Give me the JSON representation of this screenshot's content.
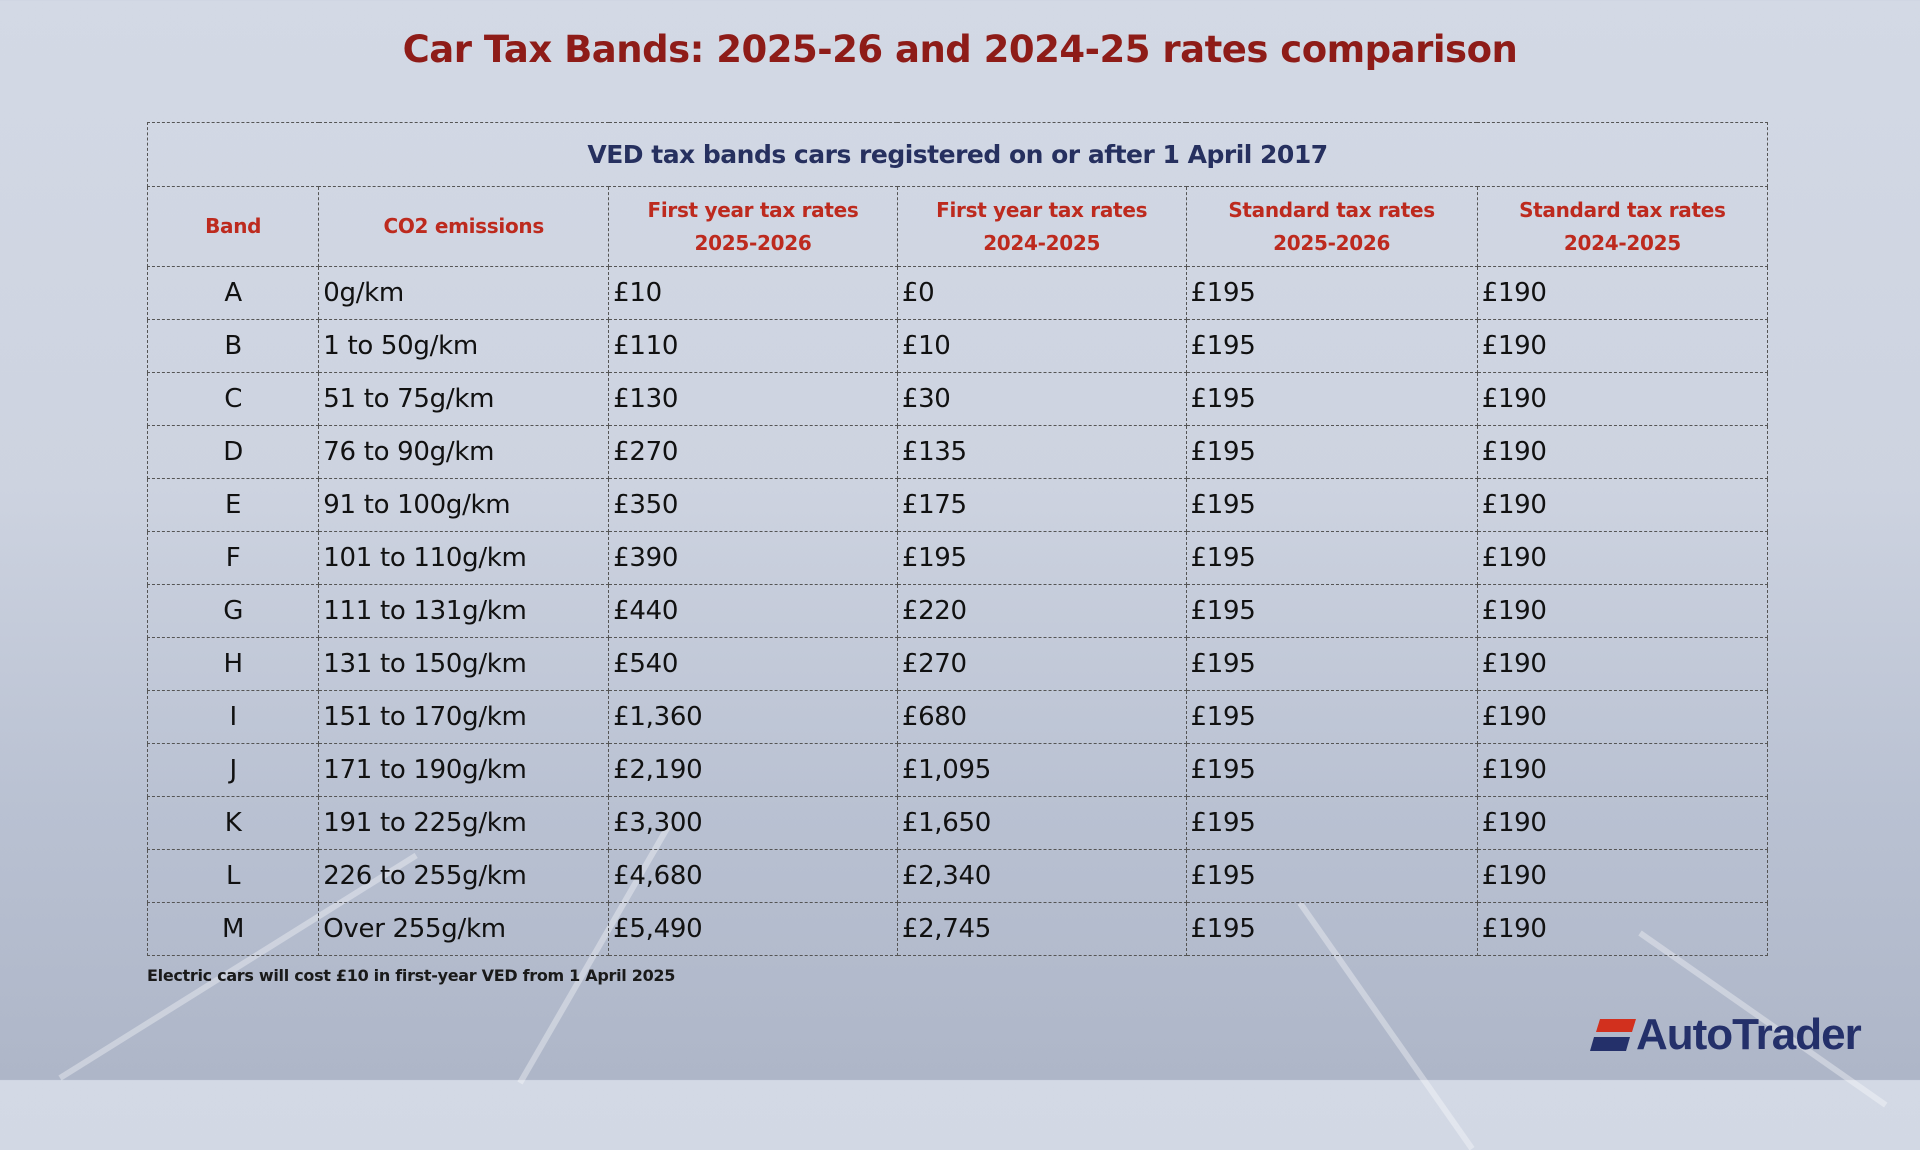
{
  "title": "Car Tax Bands: 2025-26  and 2024-25 rates comparison",
  "table": {
    "caption": "VED tax bands cars registered on or after 1 April 2017",
    "headers": [
      {
        "line1": "Band",
        "line2": ""
      },
      {
        "line1": "CO2 emissions",
        "line2": ""
      },
      {
        "line1": "First year tax rates",
        "line2": "2025-2026"
      },
      {
        "line1": "First year tax rates",
        "line2": "2024-2025"
      },
      {
        "line1": "Standard tax rates",
        "line2": "2025-2026"
      },
      {
        "line1": "Standard tax rates",
        "line2": "2024-2025"
      }
    ],
    "rows": [
      [
        "A",
        "0g/km",
        "£10",
        "£0",
        "£195",
        "£190"
      ],
      [
        "B",
        "1 to 50g/km",
        "£110",
        "£10",
        "£195",
        "£190"
      ],
      [
        "C",
        "51 to 75g/km",
        "£130",
        "£30",
        "£195",
        "£190"
      ],
      [
        "D",
        "76 to 90g/km",
        "£270",
        "£135",
        "£195",
        "£190"
      ],
      [
        "E",
        "91 to 100g/km",
        "£350",
        "£175",
        "£195",
        "£190"
      ],
      [
        "F",
        "101 to 110g/km",
        "£390",
        "£195",
        "£195",
        "£190"
      ],
      [
        "G",
        "111 to 131g/km",
        "£440",
        "£220",
        "£195",
        "£190"
      ],
      [
        "H",
        "131 to 150g/km",
        "£540",
        "£270",
        "£195",
        "£190"
      ],
      [
        "I",
        "151 to 170g/km",
        "£1,360",
        "£680",
        "£195",
        "£190"
      ],
      [
        "J",
        "171 to 190g/km",
        "£2,190",
        "£1,095",
        "£195",
        "£190"
      ],
      [
        "K",
        "191 to 225g/km",
        "£3,300",
        "£1,650",
        "£195",
        "£190"
      ],
      [
        "L",
        "226 to 255g/km",
        "£4,680",
        "£2,340",
        "£195",
        "£190"
      ],
      [
        "M",
        "Over 255g/km",
        "£5,490",
        "£2,745",
        "£195",
        "£190"
      ]
    ]
  },
  "footnote": "Electric cars will cost £10 in first-year VED from 1 April 2025",
  "logo": {
    "text": "AutoTrader",
    "colors": {
      "red": "#d2301e",
      "navy": "#24306a"
    }
  },
  "colors": {
    "title": "#8e1c18",
    "caption": "#26305f",
    "header": "#bd2a1e"
  }
}
